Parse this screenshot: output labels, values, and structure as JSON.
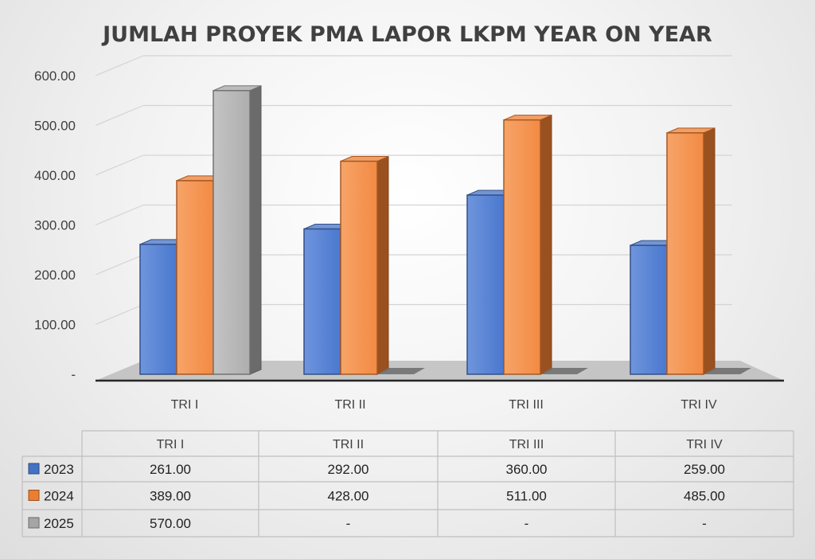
{
  "chart_data": {
    "type": "bar",
    "title": "JUMLAH PROYEK PMA LAPOR LKPM YEAR ON YEAR",
    "categories": [
      "TRI I",
      "TRI II",
      "TRI III",
      "TRI IV"
    ],
    "series": [
      {
        "name": "2023",
        "values": [
          261,
          292,
          360,
          259
        ],
        "labels": [
          "261.00",
          "292.00",
          "360.00",
          "259.00"
        ],
        "color": "#4472C4"
      },
      {
        "name": "2024",
        "values": [
          389,
          428,
          511,
          485
        ],
        "labels": [
          "389.00",
          "428.00",
          "511.00",
          "485.00"
        ],
        "color": "#ED7D31"
      },
      {
        "name": "2025",
        "values": [
          570,
          null,
          null,
          null
        ],
        "labels": [
          "570.00",
          "-",
          "-",
          "-"
        ],
        "color": "#A5A5A5"
      }
    ],
    "y_ticks": [
      "-",
      "100.00",
      "200.00",
      "300.00",
      "400.00",
      "500.00",
      "600.00"
    ],
    "ylim": [
      0,
      600
    ],
    "grid": true,
    "legend": "data-table",
    "data_table": true,
    "style": "3d-clustered-column"
  }
}
